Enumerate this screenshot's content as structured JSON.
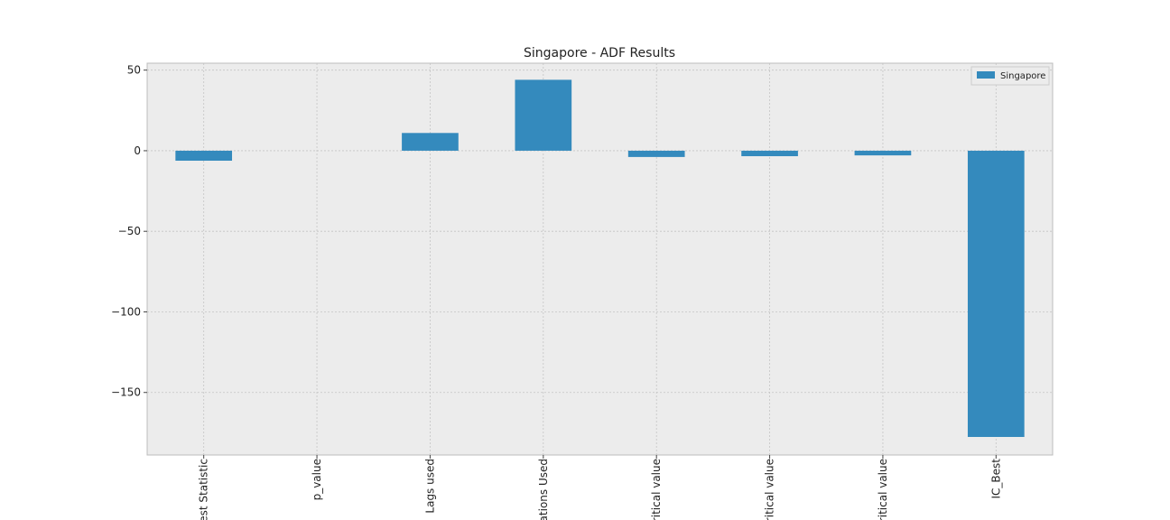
{
  "chart_data": {
    "type": "bar",
    "title": "Singapore - ADF Results",
    "categories": [
      "est Statistic",
      "p_value",
      "Lags used",
      "ations Used",
      "ritical value",
      "ritical value",
      "ritical value",
      "IC_Best"
    ],
    "series": [
      {
        "name": "Singapore",
        "color": "#348abd",
        "values": [
          -6.2,
          0.0,
          11,
          44,
          -3.9,
          -3.4,
          -2.9,
          -177.6
        ]
      }
    ],
    "ylim": [
      -188.8,
      54.3
    ],
    "yticks": [
      {
        "value": -150,
        "label": "−150"
      },
      {
        "value": -100,
        "label": "−100"
      },
      {
        "value": -50,
        "label": "−50"
      },
      0,
      50
    ],
    "grid": true,
    "legend": "upper-right"
  }
}
